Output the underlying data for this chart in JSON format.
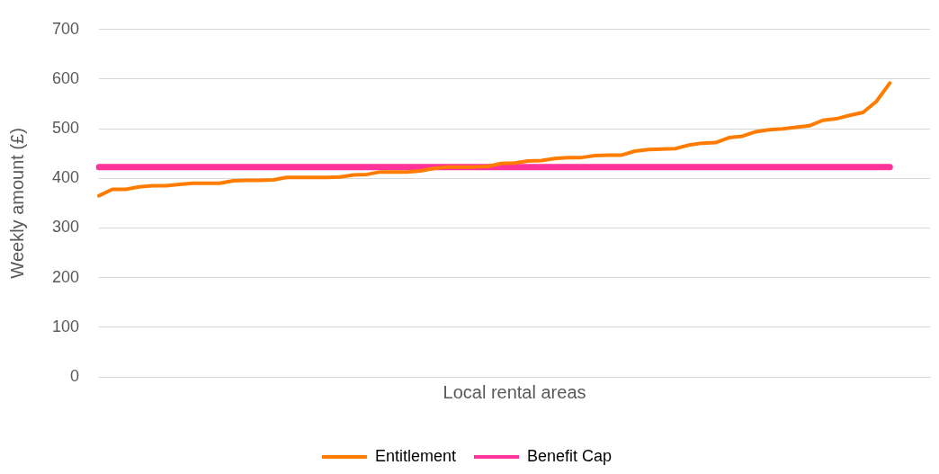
{
  "chart_data": {
    "type": "line",
    "ylabel": "Weekly amount (£)",
    "xlabel": "Local rental areas",
    "categories": [
      null,
      null,
      null,
      null,
      null,
      null,
      null,
      null,
      null,
      null,
      null,
      null,
      null,
      null,
      null,
      null,
      null,
      null,
      null,
      null,
      null,
      null,
      null,
      null,
      null,
      null,
      null,
      null,
      null,
      null,
      null,
      null,
      null,
      null,
      null,
      null,
      null,
      null,
      null,
      null,
      null,
      null,
      null,
      null,
      null,
      null,
      null,
      null,
      null,
      null,
      null,
      null,
      null,
      null,
      null,
      null,
      null,
      null,
      null,
      null,
      null,
      null,
      null
    ],
    "series": [
      {
        "name": "Entitlement",
        "color": "#ff7c00",
        "values": [
          365,
          378,
          378,
          383,
          385,
          385,
          388,
          390,
          390,
          390,
          395,
          396,
          396,
          397,
          402,
          402,
          402,
          402,
          403,
          407,
          408,
          413,
          413,
          413,
          415,
          420,
          423,
          423,
          423,
          424,
          430,
          431,
          435,
          436,
          440,
          442,
          442,
          446,
          447,
          447,
          455,
          458,
          459,
          460,
          467,
          471,
          472,
          482,
          485,
          494,
          498,
          500,
          503,
          506,
          517,
          520,
          527,
          533,
          555,
          592,
          null,
          null,
          null
        ]
      },
      {
        "name": "Benefit Cap",
        "color": "#ff3399",
        "values": [
          423,
          423,
          423,
          423,
          423,
          423,
          423,
          423,
          423,
          423,
          423,
          423,
          423,
          423,
          423,
          423,
          423,
          423,
          423,
          423,
          423,
          423,
          423,
          423,
          423,
          423,
          423,
          423,
          423,
          423,
          423,
          423,
          423,
          423,
          423,
          423,
          423,
          423,
          423,
          423,
          423,
          423,
          423,
          423,
          423,
          423,
          423,
          423,
          423,
          423,
          423,
          423,
          423,
          423,
          423,
          423,
          423,
          423,
          423,
          423,
          null,
          null,
          null
        ]
      }
    ],
    "ylim": [
      0,
      700
    ],
    "yticks": [
      0,
      100,
      200,
      300,
      400,
      500,
      600,
      700
    ],
    "grid": "y",
    "legend": "bottom",
    "tick_labels": "y",
    "marker": "none",
    "line_style": "solid"
  }
}
